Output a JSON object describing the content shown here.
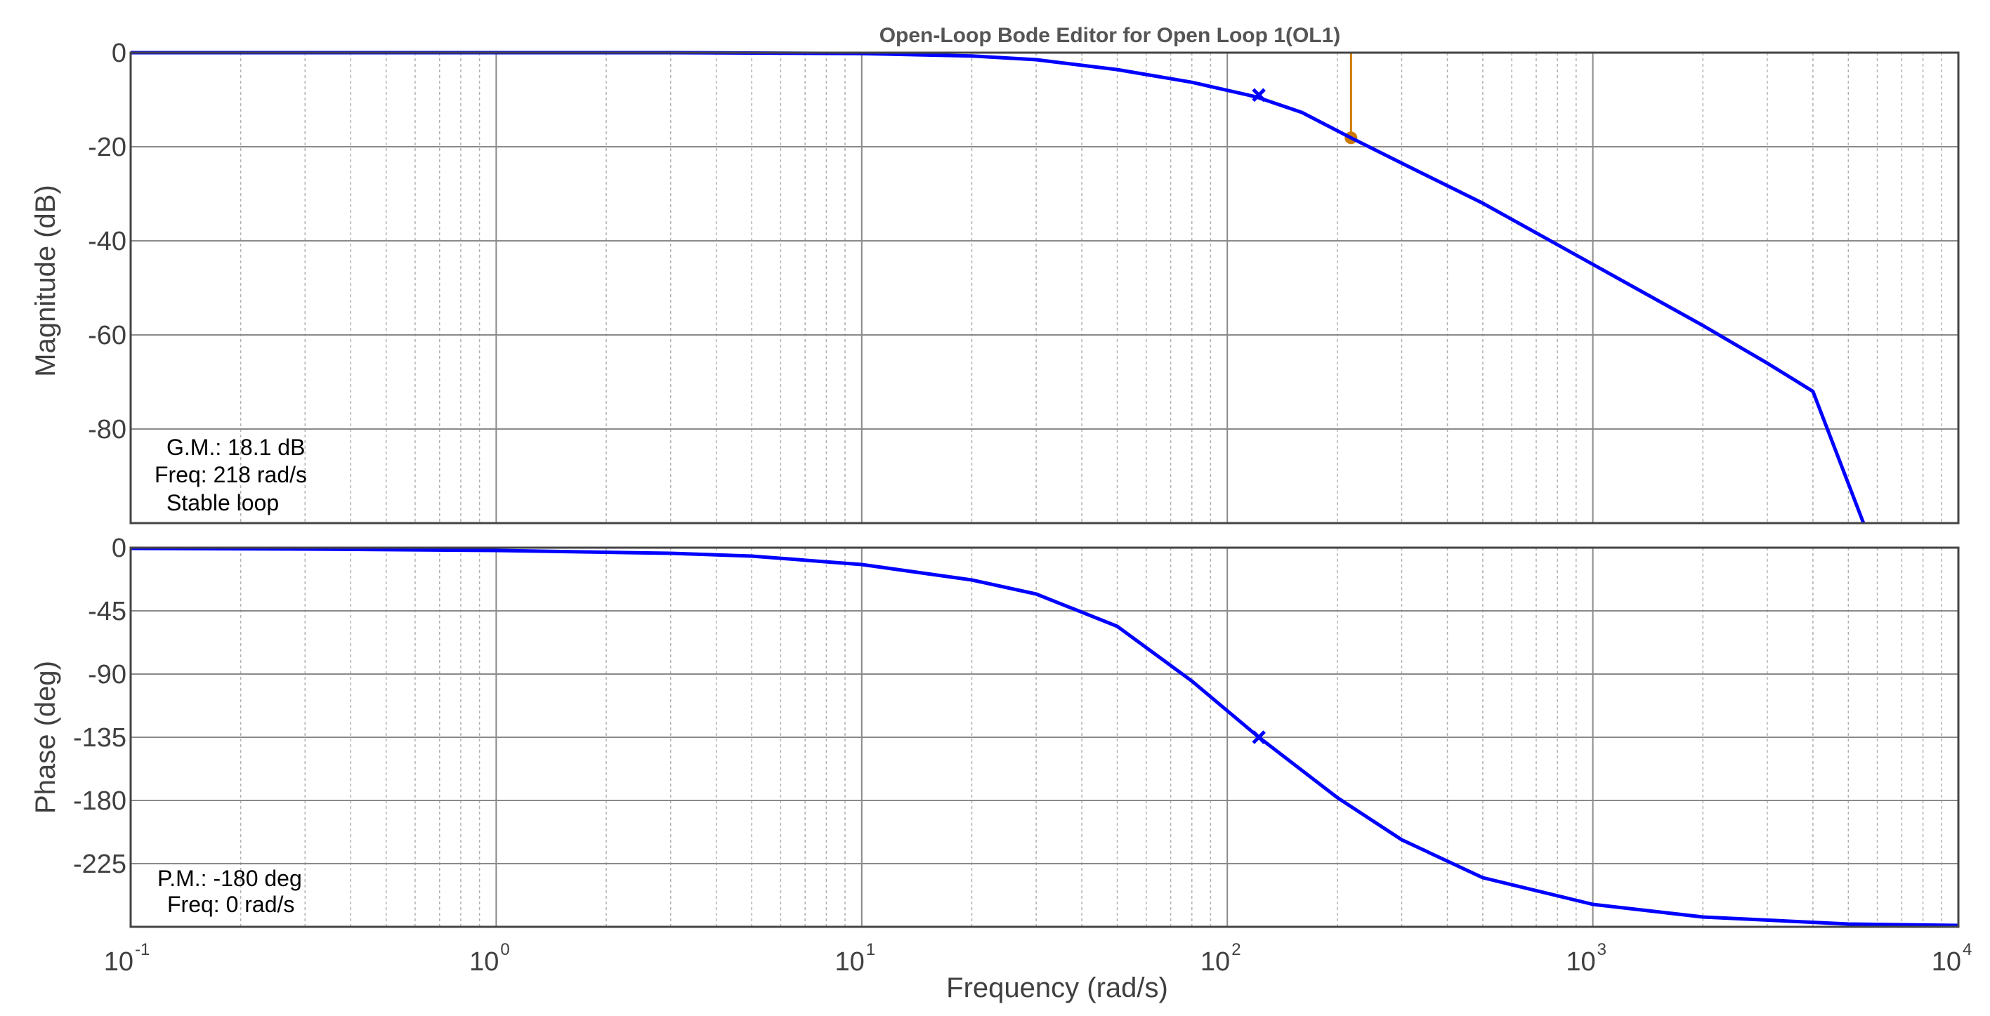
{
  "chart_data": [
    {
      "type": "line",
      "panel": "magnitude",
      "title": "Open-Loop Bode Editor for Open Loop 1(OL1)",
      "xlabel": "Frequency (rad/s)",
      "ylabel": "Magnitude (dB)",
      "xscale": "log",
      "xlim": [
        0.1,
        10000
      ],
      "ylim": [
        -100,
        0
      ],
      "yticks": [
        "0",
        "-20",
        "-40",
        "-60",
        "-80"
      ],
      "grid": true,
      "series": [
        {
          "color": "#0000ff",
          "x": [
            0.1,
            0.3,
            1,
            3,
            10,
            20,
            30,
            50,
            80,
            120,
            160,
            218,
            300,
            500,
            1000,
            2000,
            3000,
            4000,
            5500
          ],
          "y": [
            0,
            0,
            0,
            0,
            -0.2,
            -0.7,
            -1.5,
            -3.6,
            -6.3,
            -9.4,
            -12.7,
            -18.1,
            -23.5,
            -32,
            -45,
            -58,
            -66,
            -72,
            -100
          ]
        }
      ],
      "markers": [
        {
          "shape": "cross",
          "color": "#0000ff",
          "x": 122,
          "y": -9
        }
      ],
      "gain_margin_marker": {
        "color": "#cc7a00",
        "x": 218,
        "y_from": 0,
        "y_to": -18.1
      },
      "annotation": [
        "G.M.: 18.1 dB",
        "Freq: 218 rad/s",
        "Stable loop"
      ]
    },
    {
      "type": "line",
      "panel": "phase",
      "xlabel": "Frequency (rad/s)",
      "ylabel": "Phase (deg)",
      "xscale": "log",
      "xlim": [
        0.1,
        10000
      ],
      "ylim": [
        -270,
        0
      ],
      "yticks": [
        "0",
        "-45",
        "-90",
        "-135",
        "-180",
        "-225"
      ],
      "xticks": [
        {
          "base": "10",
          "exp": "-1"
        },
        {
          "base": "10",
          "exp": "0"
        },
        {
          "base": "10",
          "exp": "1"
        },
        {
          "base": "10",
          "exp": "2"
        },
        {
          "base": "10",
          "exp": "3"
        },
        {
          "base": "10",
          "exp": "4"
        }
      ],
      "grid": true,
      "series": [
        {
          "color": "#0000ff",
          "x": [
            0.1,
            0.3,
            1,
            3,
            5,
            10,
            20,
            30,
            50,
            80,
            122,
            200,
            300,
            500,
            1000,
            2000,
            5000,
            10000
          ],
          "y": [
            -0.5,
            -1,
            -2,
            -4,
            -6,
            -12,
            -23,
            -33,
            -56,
            -95,
            -135,
            -178,
            -208,
            -235,
            -254,
            -263,
            -268,
            -269
          ]
        }
      ],
      "markers": [
        {
          "shape": "cross",
          "color": "#0000ff",
          "x": 122,
          "y": -135
        }
      ],
      "annotation": [
        "P.M.: -180 deg",
        "Freq: 0 rad/s"
      ]
    }
  ]
}
